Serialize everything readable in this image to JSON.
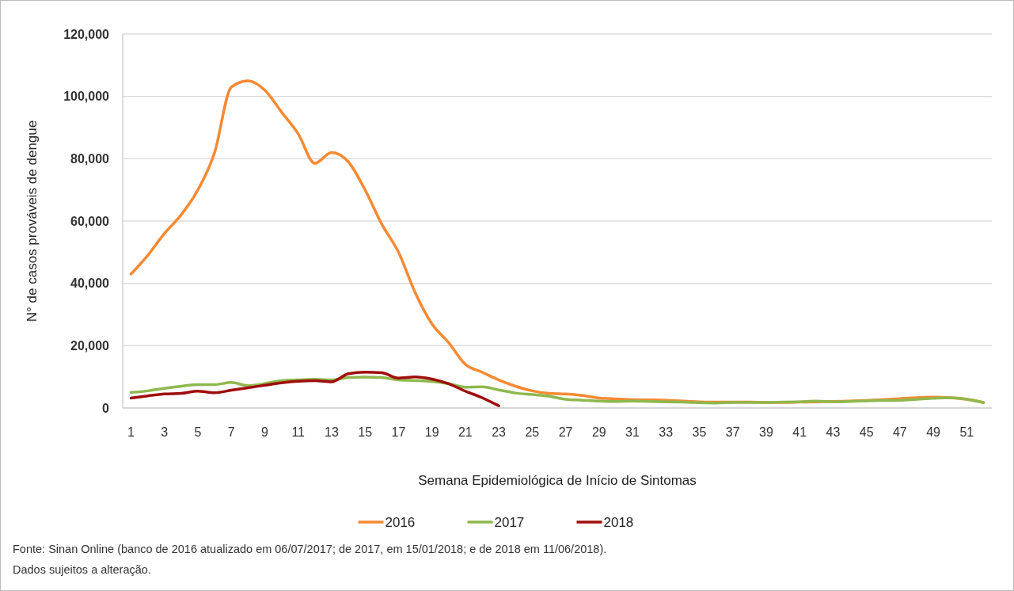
{
  "chart_data": {
    "type": "line",
    "xlabel": "Semana Epidemiológica de Início de Sintomas",
    "ylabel": "N° de casos prováveis de dengue",
    "x": [
      1,
      2,
      3,
      4,
      5,
      6,
      7,
      8,
      9,
      10,
      11,
      12,
      13,
      14,
      15,
      16,
      17,
      18,
      19,
      20,
      21,
      22,
      23,
      24,
      25,
      26,
      27,
      28,
      29,
      30,
      31,
      32,
      33,
      34,
      35,
      36,
      37,
      38,
      39,
      40,
      41,
      42,
      43,
      44,
      45,
      46,
      47,
      48,
      49,
      50,
      51,
      52
    ],
    "series": [
      {
        "name": "2016",
        "color": "#f58a33",
        "values": [
          43000,
          49000,
          56000,
          62000,
          70000,
          82000,
          103000,
          105000,
          102000,
          95000,
          88000,
          78500,
          82000,
          79000,
          70000,
          59000,
          50000,
          37000,
          27000,
          21000,
          14000,
          11500,
          9000,
          7000,
          5500,
          4700,
          4500,
          4000,
          3200,
          2900,
          2700,
          2600,
          2500,
          2200,
          2000,
          1900,
          1900,
          1900,
          1800,
          1800,
          1900,
          2000,
          2100,
          2200,
          2400,
          2700,
          3000,
          3300,
          3500,
          3300,
          2800,
          1800
        ]
      },
      {
        "name": "2017",
        "color": "#8fb84e",
        "values": [
          5000,
          5500,
          6300,
          7000,
          7500,
          7500,
          8200,
          7200,
          7800,
          8800,
          9000,
          9200,
          9000,
          9800,
          9900,
          9800,
          9000,
          8800,
          8500,
          7800,
          6700,
          6800,
          5800,
          4800,
          4300,
          3800,
          2800,
          2500,
          2200,
          2100,
          2200,
          2100,
          2000,
          1900,
          1700,
          1600,
          1800,
          1800,
          1800,
          1900,
          2000,
          2200,
          2000,
          2100,
          2300,
          2400,
          2500,
          2800,
          3100,
          3300,
          2800,
          1700
        ]
      },
      {
        "name": "2018",
        "color": "#a00d0d",
        "values": [
          3200,
          3900,
          4500,
          4700,
          5400,
          4900,
          5700,
          6500,
          7300,
          8100,
          8600,
          8800,
          8400,
          11000,
          11500,
          11300,
          9600,
          10000,
          9300,
          7800,
          5400,
          3300,
          700,
          null,
          null,
          null,
          null,
          null,
          null,
          null,
          null,
          null,
          null,
          null,
          null,
          null,
          null,
          null,
          null,
          null,
          null,
          null,
          null,
          null,
          null,
          null,
          null,
          null,
          null,
          null,
          null,
          null
        ]
      }
    ],
    "xlim": [
      0.5,
      52.5
    ],
    "xticks": [
      1,
      3,
      5,
      7,
      9,
      11,
      13,
      15,
      17,
      19,
      21,
      23,
      25,
      27,
      29,
      31,
      33,
      35,
      37,
      39,
      41,
      43,
      45,
      47,
      49,
      51
    ],
    "ylim": [
      0,
      120000
    ],
    "yticks": [
      0,
      {
        "value": 20000,
        "label": "20,000"
      },
      {
        "value": 40000,
        "label": "40,000"
      },
      {
        "value": 60000,
        "label": "60,000"
      },
      {
        "value": 80000,
        "label": "80,000"
      },
      {
        "value": 100000,
        "label": "100,000"
      },
      {
        "value": 120000,
        "label": "120,000"
      }
    ],
    "grid": "y",
    "legend": "bottom",
    "marker": "none",
    "line_style": "solid",
    "annotations": [
      "Fonte: Sinan Online (banco de 2016 atualizado em 06/07/2017; de 2017, em 15/01/2018; e de 2018 em 11/06/2018).",
      "Dados sujeitos a alteração."
    ]
  }
}
